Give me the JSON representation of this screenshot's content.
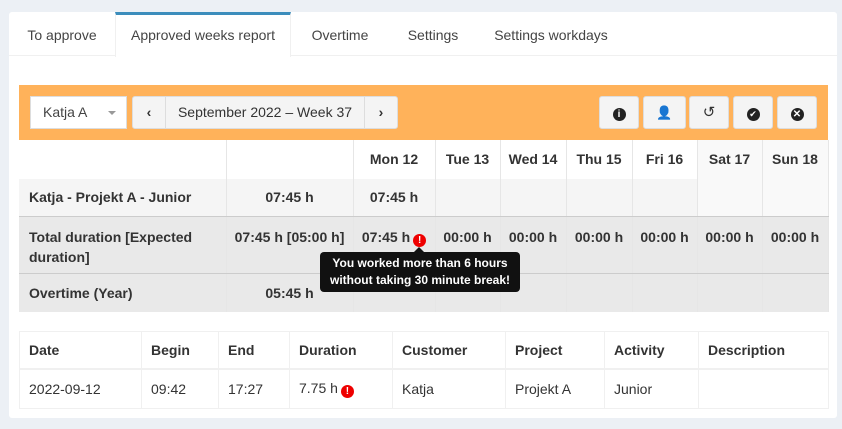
{
  "tabs": [
    "To approve",
    "Approved weeks report",
    "Overtime",
    "Settings",
    "Settings workdays"
  ],
  "active_tab": 1,
  "toolbar": {
    "user_select": "Katja A",
    "week_label": "September 2022 – Week 37",
    "prev_icon": "chevron-left-icon",
    "next_icon": "chevron-right-icon",
    "buttons": [
      {
        "icon": "info-icon"
      },
      {
        "icon": "user-clock-icon"
      },
      {
        "icon": "history-icon"
      },
      {
        "icon": "check-circle-icon"
      },
      {
        "icon": "times-circle-icon"
      }
    ]
  },
  "week": {
    "days": [
      "Mon 12",
      "Tue 13",
      "Wed 14",
      "Thu 15",
      "Fri 16",
      "Sat 17",
      "Sun 18"
    ],
    "rows": [
      {
        "label": "Katja - Projekt A - Junior",
        "total": "07:45 h",
        "days": [
          "07:45 h",
          "",
          "",
          "",
          "",
          "",
          ""
        ]
      },
      {
        "label": "Total duration [Expected duration]",
        "total": "07:45 h [05:00 h]",
        "days": [
          "07:45 h",
          "00:00 h",
          "00:00 h",
          "00:00 h",
          "00:00 h",
          "00:00 h",
          "00:00 h"
        ]
      },
      {
        "label": "Overtime (Year)",
        "total": "05:45 h",
        "days": [
          "",
          "",
          "",
          "",
          "",
          "",
          ""
        ]
      }
    ],
    "tooltip": "You worked more than 6 hours without taking 30 minute break!"
  },
  "entries": {
    "headers": [
      "Date",
      "Begin",
      "End",
      "Duration",
      "Customer",
      "Project",
      "Activity",
      "Description"
    ],
    "rows": [
      [
        "2022-09-12",
        "09:42",
        "17:27",
        "7.75 h",
        "Katja",
        "Projekt A",
        "Junior",
        ""
      ]
    ]
  },
  "colors": {
    "accent": "#3c8dbc",
    "toolbar": "#ffb25a",
    "warning": "#ee0000"
  }
}
